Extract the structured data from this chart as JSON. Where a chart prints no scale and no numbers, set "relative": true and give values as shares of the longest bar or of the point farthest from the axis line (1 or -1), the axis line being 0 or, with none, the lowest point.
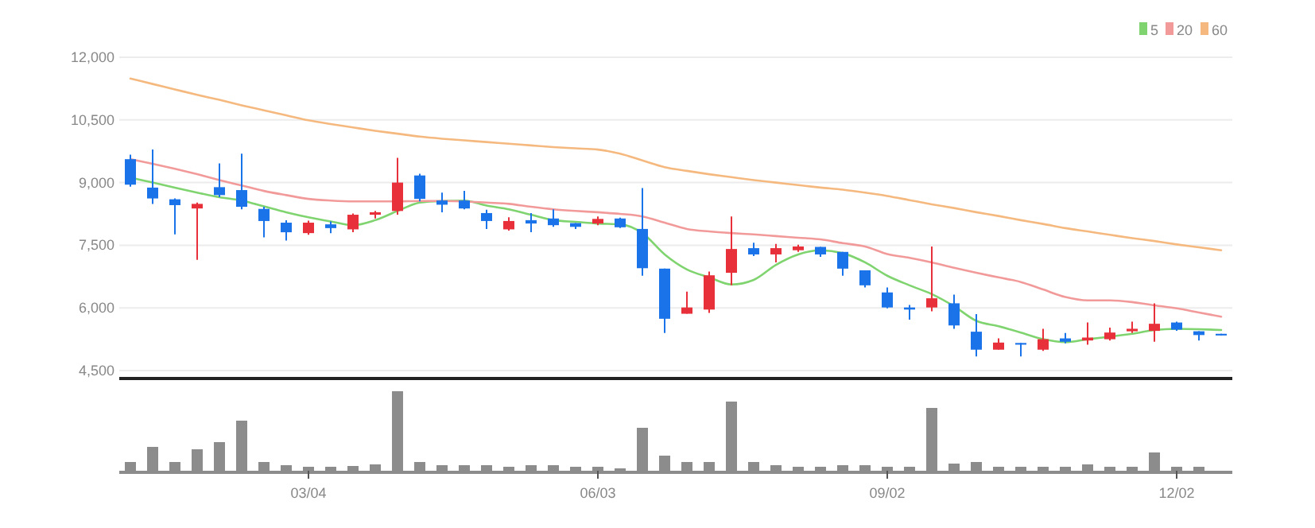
{
  "chart_data": [
    {
      "type": "candlestick",
      "legend": "top right",
      "grid": "y",
      "tick_labels": "y",
      "categories": [
        null,
        null,
        null,
        null,
        null,
        null,
        null,
        null,
        null,
        null,
        null,
        null,
        null,
        null,
        null,
        null,
        null,
        null,
        null,
        null,
        null,
        null,
        null,
        null,
        null,
        null,
        null,
        null,
        null,
        null,
        null,
        null,
        null,
        null,
        null,
        null,
        null,
        null,
        null,
        null,
        null,
        null,
        null,
        null,
        null,
        null,
        null,
        null,
        null,
        null
      ],
      "ylim": [
        4500,
        12000
      ],
      "yticks": [
        {
          "value": 4500,
          "label": "4,500"
        },
        {
          "value": 6000,
          "label": "6,000"
        },
        {
          "value": 7500,
          "label": "7,500"
        },
        {
          "value": 9000,
          "label": "9,000"
        },
        {
          "value": 10500,
          "label": "10,500"
        },
        {
          "value": 12000,
          "label": "12,000"
        }
      ],
      "ohlc": [
        [
          9560,
          9670,
          8900,
          8950
        ],
        [
          8880,
          9790,
          8490,
          8620
        ],
        [
          8600,
          8620,
          7760,
          8460
        ],
        [
          8380,
          8520,
          7150,
          8490
        ],
        [
          8890,
          9460,
          8650,
          8700
        ],
        [
          8820,
          9690,
          8360,
          8420
        ],
        [
          8370,
          8420,
          7690,
          8080
        ],
        [
          8040,
          8100,
          7610,
          7810
        ],
        [
          7790,
          8090,
          7750,
          8040
        ],
        [
          8000,
          8070,
          7790,
          7910
        ],
        [
          7880,
          8260,
          7810,
          8230
        ],
        [
          8230,
          8320,
          8140,
          8290
        ],
        [
          8320,
          9590,
          8230,
          9000
        ],
        [
          9170,
          9210,
          8550,
          8610
        ],
        [
          8570,
          8760,
          8290,
          8470
        ],
        [
          8570,
          8800,
          8360,
          8380
        ],
        [
          8270,
          8350,
          7890,
          8080
        ],
        [
          7880,
          8170,
          7850,
          8080
        ],
        [
          8100,
          8270,
          7810,
          8020
        ],
        [
          8140,
          8360,
          7940,
          7980
        ],
        [
          8030,
          8030,
          7890,
          7940
        ],
        [
          8020,
          8190,
          7980,
          8130
        ],
        [
          8140,
          8160,
          7910,
          7930
        ],
        [
          7890,
          8870,
          6770,
          6950
        ],
        [
          6940,
          6940,
          5400,
          5740
        ],
        [
          5860,
          6390,
          5860,
          6010
        ],
        [
          5960,
          6870,
          5880,
          6780
        ],
        [
          6840,
          8190,
          6540,
          7410
        ],
        [
          7430,
          7560,
          7240,
          7280
        ],
        [
          7280,
          7530,
          7090,
          7430
        ],
        [
          7380,
          7510,
          7340,
          7470
        ],
        [
          7460,
          7460,
          7220,
          7280
        ],
        [
          7340,
          7340,
          6770,
          6940
        ],
        [
          6900,
          6900,
          6490,
          6540
        ],
        [
          6370,
          6490,
          5990,
          6010
        ],
        [
          6010,
          6070,
          5720,
          5960
        ],
        [
          6010,
          7470,
          5920,
          6230
        ],
        [
          6110,
          6320,
          5500,
          5580
        ],
        [
          5430,
          5850,
          4840,
          5000
        ],
        [
          5000,
          5270,
          5000,
          5170
        ],
        [
          5160,
          5160,
          4840,
          5120
        ],
        [
          5000,
          5500,
          4970,
          5250
        ],
        [
          5270,
          5400,
          5150,
          5190
        ],
        [
          5220,
          5650,
          5120,
          5290
        ],
        [
          5250,
          5530,
          5220,
          5410
        ],
        [
          5440,
          5670,
          5400,
          5500
        ],
        [
          5450,
          6110,
          5190,
          5620
        ],
        [
          5650,
          5670,
          5450,
          5480
        ],
        [
          5440,
          5440,
          5220,
          5350
        ],
        [
          5380,
          5380,
          5340,
          5340
        ]
      ],
      "colors": [
        "#1a73e8",
        "#1a73e8",
        "#1a73e8",
        "#e8303a",
        "#1a73e8",
        "#1a73e8",
        "#1a73e8",
        "#1a73e8",
        "#e8303a",
        "#1a73e8",
        "#e8303a",
        "#e8303a",
        "#e8303a",
        "#1a73e8",
        "#1a73e8",
        "#1a73e8",
        "#1a73e8",
        "#e8303a",
        "#1a73e8",
        "#1a73e8",
        "#1a73e8",
        "#e8303a",
        "#1a73e8",
        "#1a73e8",
        "#1a73e8",
        "#e8303a",
        "#e8303a",
        "#e8303a",
        "#1a73e8",
        "#e8303a",
        "#e8303a",
        "#1a73e8",
        "#1a73e8",
        "#1a73e8",
        "#1a73e8",
        "#1a73e8",
        "#e8303a",
        "#1a73e8",
        "#1a73e8",
        "#e8303a",
        "#1a73e8",
        "#e8303a",
        "#1a73e8",
        "#e8303a",
        "#e8303a",
        "#e8303a",
        "#e8303a",
        "#1a73e8",
        "#1a73e8",
        "#1a73e8"
      ],
      "series": [
        {
          "type": "line",
          "name": "5",
          "color": "#7fd46f",
          "values": [
            9120,
            9000,
            8880,
            8760,
            8650,
            8570,
            8430,
            8290,
            8170,
            8070,
            7980,
            8100,
            8320,
            8520,
            8560,
            8570,
            8450,
            8360,
            8230,
            8100,
            8060,
            8020,
            8000,
            7790,
            7280,
            6920,
            6730,
            6560,
            6670,
            7030,
            7280,
            7380,
            7310,
            7090,
            6770,
            6540,
            6330,
            6040,
            5690,
            5560,
            5410,
            5250,
            5180,
            5250,
            5310,
            5380,
            5470,
            5500,
            5490,
            5470
          ]
        },
        {
          "type": "line",
          "name": "20",
          "color": "#f29a9a",
          "values": [
            9560,
            9450,
            9330,
            9200,
            9060,
            8930,
            8800,
            8700,
            8610,
            8570,
            8550,
            8550,
            8550,
            8560,
            8560,
            8550,
            8520,
            8490,
            8420,
            8360,
            8320,
            8290,
            8250,
            8190,
            8040,
            7890,
            7830,
            7790,
            7760,
            7720,
            7680,
            7640,
            7550,
            7470,
            7290,
            7200,
            7090,
            6960,
            6840,
            6730,
            6620,
            6440,
            6260,
            6180,
            6180,
            6140,
            6060,
            5990,
            5890,
            5790
          ]
        },
        {
          "type": "line",
          "name": "60",
          "color": "#f5b97f",
          "values": [
            11490,
            11360,
            11230,
            11100,
            10980,
            10850,
            10730,
            10610,
            10490,
            10400,
            10320,
            10240,
            10170,
            10100,
            10050,
            10010,
            9970,
            9930,
            9890,
            9850,
            9820,
            9790,
            9690,
            9530,
            9370,
            9280,
            9200,
            9130,
            9060,
            9000,
            8940,
            8880,
            8830,
            8760,
            8680,
            8580,
            8480,
            8390,
            8290,
            8200,
            8100,
            8010,
            7910,
            7830,
            7750,
            7670,
            7600,
            7520,
            7450,
            7380
          ]
        }
      ]
    },
    {
      "type": "bar",
      "relative": true,
      "tick_labels": "x",
      "color": "#8c8c8c",
      "categories": [
        null,
        null,
        null,
        null,
        null,
        null,
        null,
        null,
        "03/04",
        null,
        null,
        null,
        null,
        null,
        null,
        null,
        null,
        null,
        null,
        null,
        null,
        "06/03",
        null,
        null,
        null,
        null,
        null,
        null,
        null,
        null,
        null,
        null,
        null,
        null,
        "09/02",
        null,
        null,
        null,
        null,
        null,
        null,
        null,
        null,
        null,
        null,
        null,
        null,
        "12/02",
        null,
        null
      ],
      "values": [
        0.11,
        0.3,
        0.11,
        0.27,
        0.36,
        0.63,
        0.11,
        0.07,
        0.05,
        0.05,
        0.06,
        0.08,
        1,
        0.11,
        0.07,
        0.07,
        0.07,
        0.05,
        0.07,
        0.07,
        0.05,
        0.05,
        0.03,
        0.54,
        0.19,
        0.11,
        0.11,
        0.87,
        0.11,
        0.07,
        0.05,
        0.05,
        0.07,
        0.07,
        0.05,
        0.05,
        0.79,
        0.09,
        0.11,
        0.05,
        0.05,
        0.05,
        0.05,
        0.08,
        0.05,
        0.05,
        0.23,
        0.05,
        0.05,
        null
      ]
    }
  ]
}
